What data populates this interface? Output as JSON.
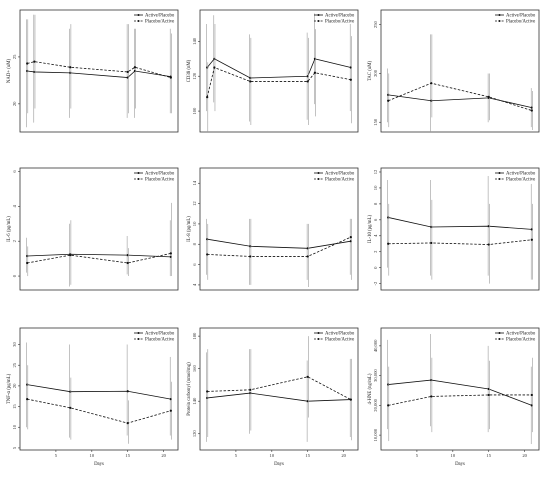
{
  "chart_data": [
    {
      "type": "line",
      "xlabel": "",
      "ylabel": "NAD+ (uM)",
      "xlim": [
        0,
        22
      ],
      "ylim": [
        17,
        30
      ],
      "xticks": [],
      "yticks": [
        20,
        25
      ],
      "legend_position": "top-right",
      "series": [
        {
          "name": "Active/Placebo",
          "style": "solid",
          "x": [
            1,
            2,
            7,
            15,
            16,
            21
          ],
          "y": [
            23.5,
            23.4,
            23.3,
            22.8,
            23.5,
            22.9
          ],
          "err": [
            [
              17.5,
              29.0
            ],
            [
              18.0,
              29.5
            ],
            [
              18.5,
              28.0
            ],
            [
              18.5,
              28.5
            ],
            [
              18.5,
              28.0
            ],
            [
              19.0,
              28.0
            ]
          ]
        },
        {
          "name": "Placebo/Active",
          "style": "dashed",
          "x": [
            1,
            2,
            7,
            15,
            16,
            21
          ],
          "y": [
            24.3,
            24.5,
            23.9,
            23.4,
            23.9,
            22.8
          ],
          "err": [
            [
              19.0,
              29.0
            ],
            [
              19.5,
              29.5
            ],
            [
              19.5,
              28.5
            ],
            [
              19.0,
              28.5
            ],
            [
              19.5,
              28.0
            ],
            [
              19.0,
              27.5
            ]
          ]
        }
      ]
    },
    {
      "type": "line",
      "xlabel": "",
      "ylabel": "CD38 (nM)",
      "xlim": [
        0,
        22
      ],
      "ylim": [
        88,
        158
      ],
      "xticks": [],
      "yticks": [
        100,
        120,
        140
      ],
      "legend_position": "top-right",
      "series": [
        {
          "name": "Active/Placebo",
          "style": "solid",
          "x": [
            1,
            2,
            7,
            15,
            16,
            21
          ],
          "y": [
            125,
            130,
            119,
            120,
            130,
            125
          ],
          "err": [
            [
              100,
              150
            ],
            [
              105,
              155
            ],
            [
              94,
              144
            ],
            [
              95,
              145
            ],
            [
              104,
              156
            ],
            [
              100,
              150
            ]
          ]
        },
        {
          "name": "Placebo/Active",
          "style": "dashed",
          "x": [
            1,
            2,
            7,
            15,
            16,
            21
          ],
          "y": [
            108,
            125,
            117,
            117,
            122,
            118
          ],
          "err": [
            [
              88,
              128
            ],
            [
              100,
              150
            ],
            [
              92,
              142
            ],
            [
              92,
              142
            ],
            [
              97,
              147
            ],
            [
              93,
              143
            ]
          ]
        }
      ]
    },
    {
      "type": "line",
      "xlabel": "",
      "ylabel": "TAC (uM)",
      "xlim": [
        0,
        22
      ],
      "ylim": [
        140,
        265
      ],
      "xticks": [],
      "yticks": [
        150,
        200,
        250
      ],
      "legend_position": "top-right",
      "series": [
        {
          "name": "Active/Placebo",
          "style": "solid",
          "x": [
            1,
            7,
            15,
            21
          ],
          "y": [
            178,
            172,
            175,
            165
          ],
          "err": [
            [
              150,
              205
            ],
            [
              140,
              240
            ],
            [
              150,
              200
            ],
            [
              145,
              185
            ]
          ]
        },
        {
          "name": "Placebo/Active",
          "style": "dashed",
          "x": [
            1,
            7,
            15,
            21
          ],
          "y": [
            172,
            190,
            176,
            162
          ],
          "err": [
            [
              145,
              200
            ],
            [
              155,
              240
            ],
            [
              152,
              200
            ],
            [
              142,
              182
            ]
          ]
        }
      ]
    },
    {
      "type": "line",
      "xlabel": "",
      "ylabel": "IL-6 (pg/mL)",
      "xlim": [
        0,
        22
      ],
      "ylim": [
        -0.8,
        6.2
      ],
      "xticks": [],
      "yticks": [
        0,
        2,
        4,
        6
      ],
      "legend_position": "top-right",
      "series": [
        {
          "name": "Active/Placebo",
          "style": "solid",
          "x": [
            1,
            7,
            15,
            21
          ],
          "y": [
            1.15,
            1.25,
            1.2,
            1.1
          ],
          "err": [
            [
              0.2,
              2.2
            ],
            [
              -0.6,
              3.0
            ],
            [
              0.1,
              2.3
            ],
            [
              0.0,
              3.2
            ]
          ]
        },
        {
          "name": "Placebo/Active",
          "style": "dashed",
          "x": [
            1,
            7,
            15,
            21
          ],
          "y": [
            0.75,
            1.2,
            0.75,
            1.3
          ],
          "err": [
            [
              0.0,
              1.7
            ],
            [
              -0.5,
              3.2
            ],
            [
              0.0,
              1.6
            ],
            [
              0.0,
              4.2
            ]
          ]
        }
      ]
    },
    {
      "type": "line",
      "xlabel": "",
      "ylabel": "IL-8 (pg/mL)",
      "xlim": [
        0,
        22
      ],
      "ylim": [
        3.5,
        15.5
      ],
      "xticks": [],
      "yticks": [
        4,
        6,
        8,
        10,
        12,
        14
      ],
      "legend_position": "top-right",
      "series": [
        {
          "name": "Active/Placebo",
          "style": "solid",
          "x": [
            1,
            7,
            15,
            21
          ],
          "y": [
            8.5,
            7.8,
            7.6,
            8.3
          ],
          "err": [
            [
              5.0,
              10.5
            ],
            [
              4.0,
              10.5
            ],
            [
              4.5,
              10.0
            ],
            [
              5.0,
              10.5
            ]
          ]
        },
        {
          "name": "Placebo/Active",
          "style": "dashed",
          "x": [
            1,
            7,
            15,
            21
          ],
          "y": [
            7.0,
            6.8,
            6.8,
            8.7
          ],
          "err": [
            [
              4.5,
              10.0
            ],
            [
              4.0,
              10.5
            ],
            [
              3.8,
              10.0
            ],
            [
              4.5,
              10.5
            ]
          ]
        }
      ]
    },
    {
      "type": "line",
      "xlabel": "",
      "ylabel": "IL-10 (pg/mL)",
      "xlim": [
        0,
        22
      ],
      "ylim": [
        -2.8,
        12.5
      ],
      "xticks": [],
      "yticks": [
        -2,
        0,
        2,
        4,
        6,
        8,
        10,
        12
      ],
      "legend_position": "top-right",
      "series": [
        {
          "name": "Active/Placebo",
          "style": "solid",
          "x": [
            1,
            7,
            15,
            21
          ],
          "y": [
            6.3,
            5.1,
            5.2,
            4.8
          ],
          "err": [
            [
              0.0,
              11.0
            ],
            [
              -1.0,
              11.0
            ],
            [
              -1.0,
              11.5
            ],
            [
              -1.5,
              10.5
            ]
          ]
        },
        {
          "name": "Placebo/Active",
          "style": "dashed",
          "x": [
            1,
            7,
            15,
            21
          ],
          "y": [
            3.0,
            3.1,
            2.9,
            3.5
          ],
          "err": [
            [
              -1.0,
              8.0
            ],
            [
              -1.5,
              8.5
            ],
            [
              -2.0,
              8.0
            ],
            [
              -1.5,
              8.0
            ]
          ]
        }
      ]
    },
    {
      "type": "line",
      "xlabel": "Days",
      "ylabel": "TNF-α (pg/mL)",
      "xlim": [
        0,
        22
      ],
      "ylim": [
        4.5,
        34
      ],
      "xticks": [
        5,
        10,
        15,
        20
      ],
      "yticks": [
        5,
        10,
        15,
        20,
        25,
        30
      ],
      "legend_position": "top-right",
      "series": [
        {
          "name": "Active/Placebo",
          "style": "solid",
          "x": [
            1,
            7,
            15,
            21
          ],
          "y": [
            20.3,
            18.6,
            18.7,
            16.8
          ],
          "err": [
            [
              10.0,
              30.5
            ],
            [
              7.5,
              30.0
            ],
            [
              8.0,
              30.0
            ],
            [
              8.0,
              27.0
            ]
          ]
        },
        {
          "name": "Placebo/Active",
          "style": "dashed",
          "x": [
            1,
            7,
            15,
            21
          ],
          "y": [
            16.8,
            14.7,
            11.0,
            14.0
          ],
          "err": [
            [
              9.5,
              25.0
            ],
            [
              7.0,
              22.0
            ],
            [
              6.0,
              16.5
            ],
            [
              7.0,
              21.0
            ]
          ]
        }
      ]
    },
    {
      "type": "line",
      "xlabel": "Days",
      "ylabel": "Protein carbonyl (nmol/mg)",
      "xlim": [
        0,
        22
      ],
      "ylim": [
        110,
        185
      ],
      "xticks": [
        5,
        10,
        15,
        20
      ],
      "yticks": [
        120,
        140,
        160,
        180
      ],
      "legend_position": "top-right",
      "series": [
        {
          "name": "Active/Placebo",
          "style": "solid",
          "x": [
            1,
            7,
            15,
            21
          ],
          "y": [
            142,
            145,
            140,
            141
          ],
          "err": [
            [
              115,
              170
            ],
            [
              120,
              172
            ],
            [
              115,
              165
            ],
            [
              118,
              166
            ]
          ]
        },
        {
          "name": "Placebo/Active",
          "style": "dashed",
          "x": [
            1,
            7,
            15,
            21
          ],
          "y": [
            146,
            147,
            155,
            141
          ],
          "err": [
            [
              118,
              172
            ],
            [
              122,
              172
            ],
            [
              130,
              180
            ],
            [
              116,
              166
            ]
          ]
        }
      ]
    },
    {
      "type": "line",
      "xlabel": "Days",
      "ylabel": "4-HNE (ng/mL)",
      "xlim": [
        0,
        22
      ],
      "ylim": [
        5000,
        46000
      ],
      "xticks": [
        5,
        10,
        15,
        20
      ],
      "yticks": [
        10000,
        20000,
        30000,
        40000
      ],
      "ytick_labels": [
        "10,000",
        "20,000",
        "30,000",
        "40,000"
      ],
      "legend_position": "top-right",
      "series": [
        {
          "name": "Active/Placebo",
          "style": "solid",
          "x": [
            1,
            7,
            15,
            21
          ],
          "y": [
            27000,
            28500,
            25500,
            20000
          ],
          "err": [
            [
              12000,
              42000
            ],
            [
              13000,
              44000
            ],
            [
              11000,
              40000
            ],
            [
              7000,
              33000
            ]
          ]
        },
        {
          "name": "Placebo/Active",
          "style": "dashed",
          "x": [
            1,
            7,
            15,
            21
          ],
          "y": [
            20000,
            23000,
            23500,
            23500
          ],
          "err": [
            [
              8000,
              33000
            ],
            [
              11000,
              36000
            ],
            [
              12000,
              35000
            ],
            [
              11000,
              36000
            ]
          ]
        }
      ]
    }
  ]
}
